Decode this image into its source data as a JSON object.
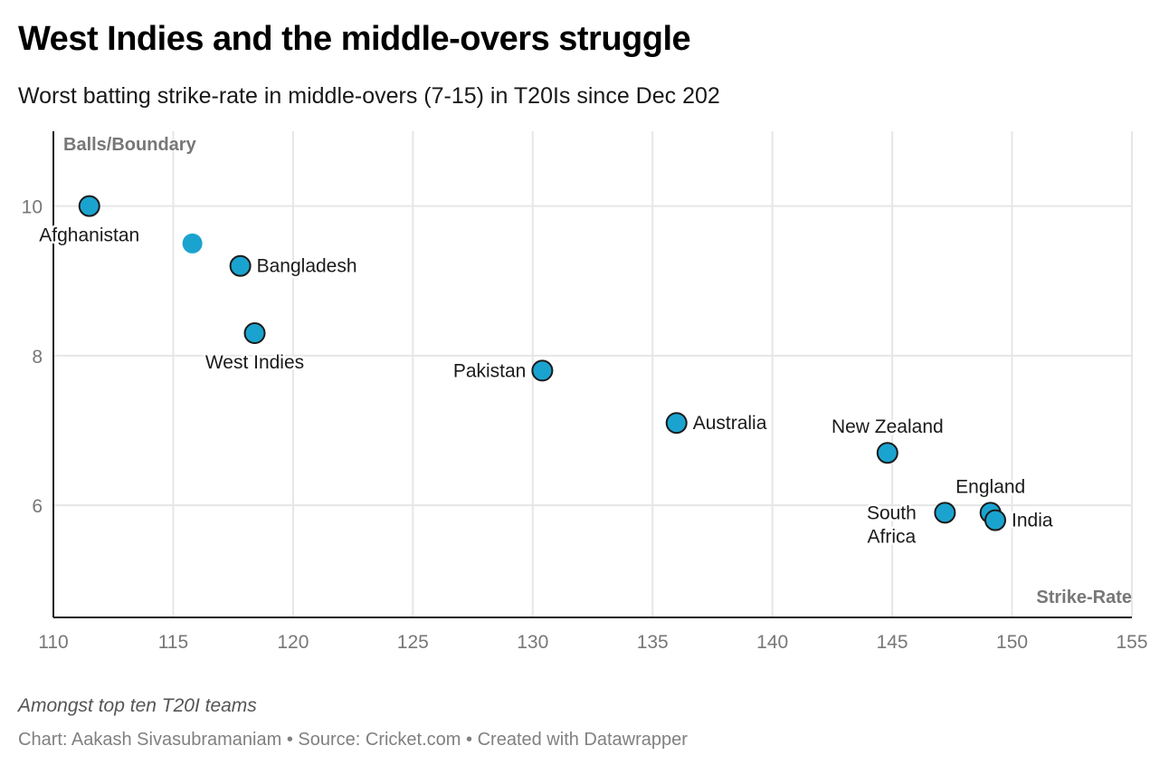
{
  "header": {
    "title": "West Indies and the middle-overs struggle",
    "subtitle": "Worst batting strike-rate in middle-overs (7-15) in T20Is since Dec 202"
  },
  "footer": {
    "notes": "Amongst top ten T20I teams",
    "credit": "Chart: Aakash Sivasubramaniam",
    "separator": "•",
    "source": "Source: Cricket.com",
    "tool": "Created with Datawrapper"
  },
  "colors": {
    "point": "#1ba3cf",
    "point_stroke": "#1a1a1a",
    "grid": "#e6e6e6",
    "axis": "#1a1a1a",
    "tick_label": "#777777",
    "axis_title": "#777777",
    "label": "#1a1a1a"
  },
  "chart_data": {
    "type": "scatter",
    "title": "West Indies and the middle-overs struggle",
    "subtitle": "Worst batting strike-rate in middle-overs (7-15) in T20Is since Dec 202",
    "xlabel": "Strike-Rate",
    "ylabel": "Balls/Boundary",
    "xlim": [
      110,
      155
    ],
    "ylim": [
      4.5,
      11
    ],
    "xticks": [
      110,
      115,
      120,
      125,
      130,
      135,
      140,
      145,
      150,
      155
    ],
    "yticks": [
      6,
      8,
      10
    ],
    "grid": true,
    "legend": "none",
    "points": [
      {
        "label": "Afghanistan",
        "x": 111.5,
        "y": 10.0,
        "outlined": true,
        "label_pos": "below"
      },
      {
        "label": "",
        "x": 115.8,
        "y": 9.5,
        "outlined": false,
        "label_pos": "none"
      },
      {
        "label": "Bangladesh",
        "x": 117.8,
        "y": 9.2,
        "outlined": true,
        "label_pos": "right"
      },
      {
        "label": "West Indies",
        "x": 118.4,
        "y": 8.3,
        "outlined": true,
        "label_pos": "below"
      },
      {
        "label": "Pakistan",
        "x": 130.4,
        "y": 7.8,
        "outlined": true,
        "label_pos": "left"
      },
      {
        "label": "Australia",
        "x": 136.0,
        "y": 7.1,
        "outlined": true,
        "label_pos": "right"
      },
      {
        "label": "New Zealand",
        "x": 144.8,
        "y": 6.7,
        "outlined": true,
        "label_pos": "above"
      },
      {
        "label": "South Africa",
        "x": 147.2,
        "y": 5.9,
        "outlined": true,
        "label_pos": "left-wrap",
        "label_lines": [
          "South",
          "Africa"
        ]
      },
      {
        "label": "England",
        "x": 149.1,
        "y": 5.9,
        "outlined": true,
        "label_pos": "above"
      },
      {
        "label": "India",
        "x": 149.3,
        "y": 5.8,
        "outlined": true,
        "label_pos": "right"
      }
    ]
  }
}
